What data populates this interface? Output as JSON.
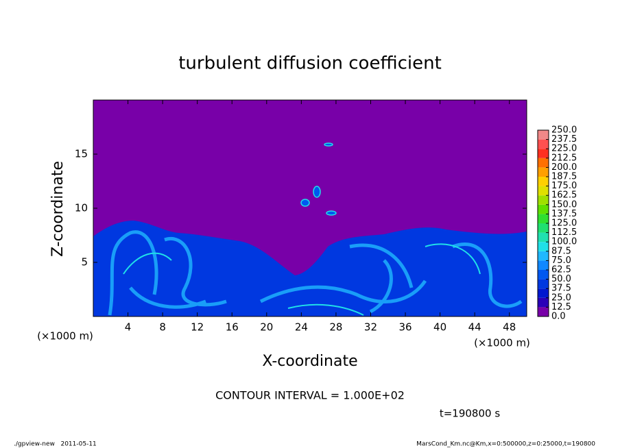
{
  "chart_data": {
    "type": "contour",
    "title": "turbulent diffusion coefficient",
    "xlabel": "X-coordinate",
    "ylabel": "Z-coordinate",
    "axis_unit": "(×1000 m)",
    "xlim": [
      0,
      50
    ],
    "xticks": [
      4,
      8,
      12,
      16,
      20,
      24,
      28,
      32,
      36,
      40,
      44,
      48
    ],
    "ylim": [
      0,
      20
    ],
    "yticks": [
      5,
      10,
      15
    ],
    "colorbar": {
      "levels": [
        {
          "value": 0,
          "label": "0.0"
        },
        12.5,
        {
          "value": 25,
          "label": "25.0"
        },
        37.5,
        {
          "value": 50,
          "label": "50.0"
        },
        62.5,
        {
          "value": 75,
          "label": "75.0"
        },
        87.5,
        {
          "value": 100,
          "label": "100.0"
        },
        112.5,
        {
          "value": 125,
          "label": "125.0"
        },
        137.5,
        {
          "value": 150,
          "label": "150.0"
        },
        162.5,
        {
          "value": 175,
          "label": "175.0"
        },
        187.5,
        {
          "value": 200,
          "label": "200.0"
        },
        212.5,
        {
          "value": 225,
          "label": "225.0"
        },
        237.5,
        {
          "value": 250,
          "label": "250.0"
        }
      ],
      "colors": [
        "#7800a8",
        "#2a00b8",
        "#0018d0",
        "#0038e0",
        "#0058f0",
        "#1088ff",
        "#20b8ff",
        "#20e0e8",
        "#20e0b0",
        "#20e070",
        "#30e030",
        "#60e000",
        "#a0e000",
        "#e0e000",
        "#ffd000",
        "#ffa000",
        "#ff7000",
        "#ff3020",
        "#ff5050",
        "#f08888"
      ]
    },
    "contour_interval": "CONTOUR INTERVAL = 1.000E+02",
    "time_label": "t=190800 s",
    "footer_left": "./gpview-new   2011-05-11",
    "footer_right": "MarsCond_Km.nc@Km,x=0:500000,z=0:25000,t=190800"
  }
}
